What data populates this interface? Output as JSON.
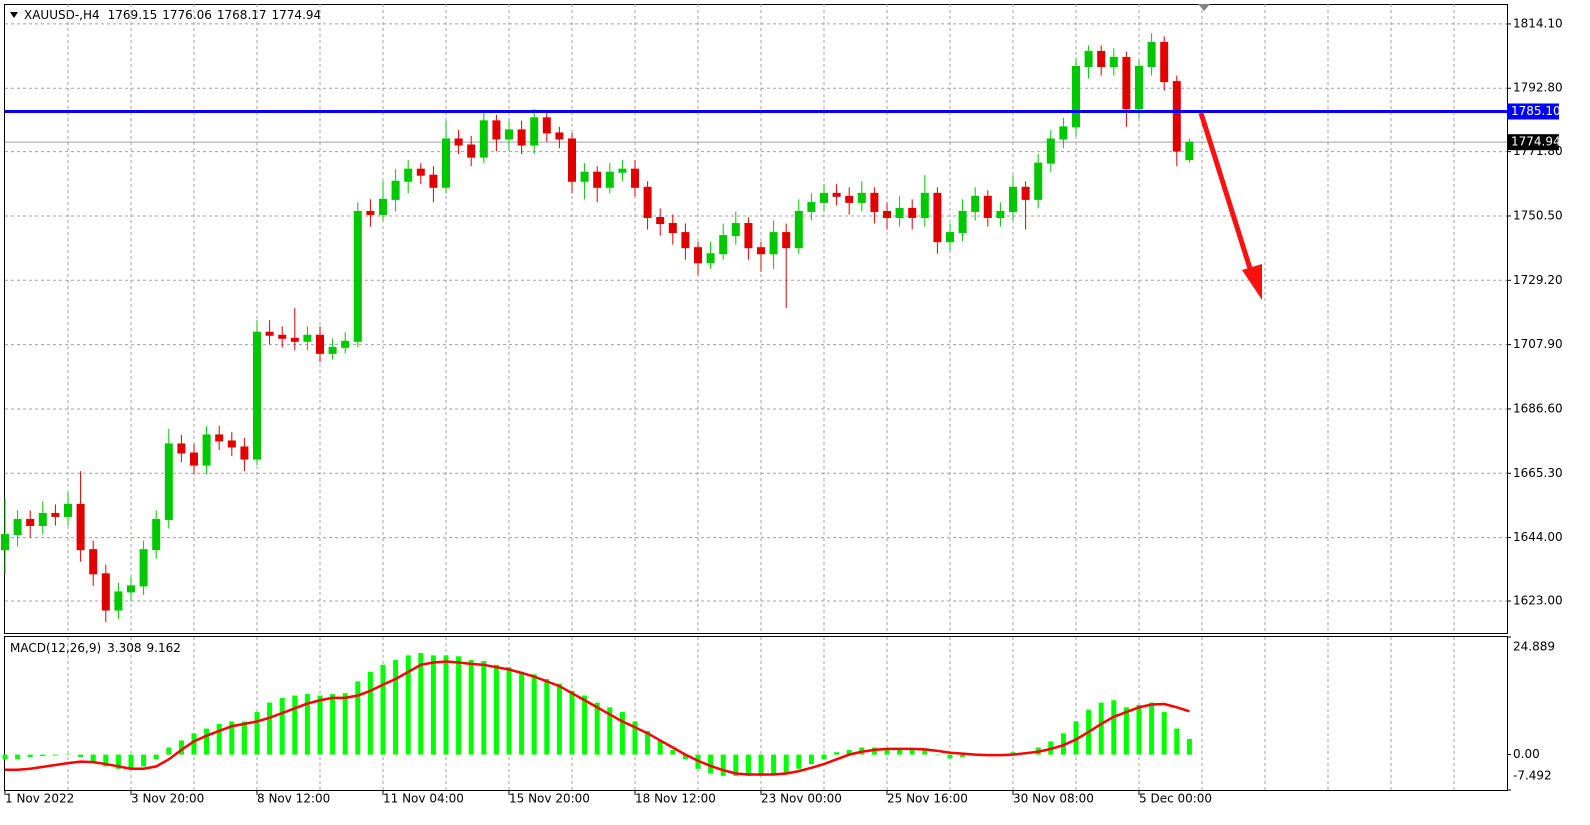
{
  "chart_data": [
    {
      "type": "candlestick",
      "symbol": "XAUUSD-,H4",
      "categories": [
        "1 Nov 2022",
        null,
        null,
        null,
        null,
        null,
        null,
        null,
        null,
        null,
        "3 Nov 20:00",
        null,
        null,
        null,
        null,
        null,
        null,
        null,
        null,
        null,
        "8 Nov 12:00",
        null,
        null,
        null,
        null,
        null,
        null,
        null,
        null,
        null,
        "11 Nov 04:00",
        null,
        null,
        null,
        null,
        null,
        null,
        null,
        null,
        null,
        "15 Nov 20:00",
        null,
        null,
        null,
        null,
        null,
        null,
        null,
        null,
        null,
        "18 Nov 12:00",
        null,
        null,
        null,
        null,
        null,
        null,
        null,
        null,
        null,
        "23 Nov 00:00",
        null,
        null,
        null,
        null,
        null,
        null,
        null,
        null,
        null,
        "25 Nov 16:00",
        null,
        null,
        null,
        null,
        null,
        null,
        null,
        null,
        null,
        "30 Nov 08:00",
        null,
        null,
        null,
        null,
        null,
        null,
        null,
        null,
        null,
        "5 Dec 00:00",
        null,
        null,
        null,
        null
      ],
      "candles": [
        [
          1640,
          1657,
          1632,
          1645
        ],
        [
          1645,
          1653,
          1641,
          1650
        ],
        [
          1650,
          1653,
          1644,
          1648
        ],
        [
          1648,
          1656,
          1645,
          1652
        ],
        [
          1652,
          1655,
          1648,
          1651
        ],
        [
          1651,
          1659,
          1648,
          1655
        ],
        [
          1655,
          1666,
          1636,
          1640
        ],
        [
          1640,
          1643,
          1628,
          1632
        ],
        [
          1632,
          1635,
          1616,
          1620
        ],
        [
          1620,
          1629,
          1617,
          1626
        ],
        [
          1626,
          1631,
          1623,
          1628
        ],
        [
          1628,
          1643,
          1625,
          1640
        ],
        [
          1640,
          1653,
          1637,
          1650
        ],
        [
          1650,
          1680,
          1647,
          1675
        ],
        [
          1675,
          1678,
          1669,
          1672
        ],
        [
          1672,
          1675,
          1665,
          1668
        ],
        [
          1668,
          1681,
          1665,
          1678
        ],
        [
          1678,
          1681,
          1673,
          1676
        ],
        [
          1676,
          1679,
          1671,
          1674
        ],
        [
          1674,
          1677,
          1666,
          1670
        ],
        [
          1670,
          1716,
          1668,
          1712
        ],
        [
          1712,
          1716,
          1708,
          1711
        ],
        [
          1711,
          1714,
          1707,
          1710
        ],
        [
          1710,
          1720,
          1706,
          1709
        ],
        [
          1709,
          1714,
          1706,
          1711
        ],
        [
          1711,
          1714,
          1702,
          1705
        ],
        [
          1705,
          1710,
          1703,
          1707
        ],
        [
          1707,
          1712,
          1705,
          1709
        ],
        [
          1709,
          1755,
          1707,
          1752
        ],
        [
          1752,
          1756,
          1747,
          1751
        ],
        [
          1751,
          1762,
          1749,
          1756
        ],
        [
          1756,
          1766,
          1752,
          1762
        ],
        [
          1762,
          1769,
          1758,
          1766
        ],
        [
          1766,
          1768,
          1761,
          1764
        ],
        [
          1764,
          1767,
          1755,
          1760
        ],
        [
          1760,
          1782,
          1758,
          1776
        ],
        [
          1776,
          1779,
          1771,
          1774
        ],
        [
          1774,
          1777,
          1767,
          1770
        ],
        [
          1770,
          1785,
          1768,
          1782
        ],
        [
          1782,
          1784,
          1772,
          1776
        ],
        [
          1776,
          1782,
          1772,
          1779
        ],
        [
          1779,
          1782,
          1771,
          1774
        ],
        [
          1774,
          1786,
          1771,
          1783
        ],
        [
          1783,
          1785,
          1775,
          1778
        ],
        [
          1778,
          1780,
          1773,
          1776
        ],
        [
          1776,
          1778,
          1758,
          1762
        ],
        [
          1762,
          1768,
          1756,
          1765
        ],
        [
          1765,
          1767,
          1755,
          1760
        ],
        [
          1760,
          1768,
          1758,
          1765
        ],
        [
          1765,
          1769,
          1762,
          1766
        ],
        [
          1766,
          1769,
          1757,
          1760
        ],
        [
          1760,
          1762,
          1746,
          1750
        ],
        [
          1750,
          1753,
          1744,
          1748
        ],
        [
          1748,
          1751,
          1741,
          1745
        ],
        [
          1745,
          1748,
          1736,
          1740
        ],
        [
          1740,
          1742,
          1731,
          1735
        ],
        [
          1735,
          1742,
          1733,
          1738
        ],
        [
          1738,
          1748,
          1736,
          1744
        ],
        [
          1744,
          1752,
          1741,
          1748
        ],
        [
          1748,
          1750,
          1736,
          1740
        ],
        [
          1740,
          1742,
          1732,
          1738
        ],
        [
          1738,
          1749,
          1733,
          1745
        ],
        [
          1745,
          1748,
          1720,
          1740
        ],
        [
          1740,
          1756,
          1738,
          1752
        ],
        [
          1752,
          1758,
          1749,
          1755
        ],
        [
          1755,
          1761,
          1752,
          1758
        ],
        [
          1758,
          1761,
          1754,
          1757
        ],
        [
          1757,
          1760,
          1751,
          1755
        ],
        [
          1755,
          1762,
          1752,
          1758
        ],
        [
          1758,
          1760,
          1748,
          1752
        ],
        [
          1752,
          1755,
          1746,
          1750
        ],
        [
          1750,
          1757,
          1747,
          1753
        ],
        [
          1753,
          1756,
          1746,
          1750
        ],
        [
          1750,
          1764,
          1747,
          1758
        ],
        [
          1758,
          1760,
          1738,
          1742
        ],
        [
          1742,
          1748,
          1739,
          1745
        ],
        [
          1745,
          1756,
          1742,
          1752
        ],
        [
          1752,
          1760,
          1749,
          1757
        ],
        [
          1757,
          1759,
          1747,
          1750
        ],
        [
          1750,
          1755,
          1747,
          1752
        ],
        [
          1752,
          1764,
          1749,
          1760
        ],
        [
          1760,
          1762,
          1746,
          1756
        ],
        [
          1756,
          1771,
          1753,
          1768
        ],
        [
          1768,
          1779,
          1765,
          1776
        ],
        [
          1776,
          1783,
          1773,
          1780
        ],
        [
          1780,
          1803,
          1777,
          1800
        ],
        [
          1800,
          1807,
          1796,
          1805
        ],
        [
          1805,
          1807,
          1797,
          1800
        ],
        [
          1800,
          1806,
          1797,
          1803
        ],
        [
          1803,
          1805,
          1780,
          1786
        ],
        [
          1786,
          1802,
          1783,
          1800
        ],
        [
          1800,
          1811,
          1797,
          1808
        ],
        [
          1808,
          1810,
          1792,
          1795
        ],
        [
          1795,
          1797,
          1767,
          1772
        ],
        [
          1769.15,
          1776.06,
          1768.17,
          1774.94
        ]
      ],
      "up_color": "#00c800",
      "down_color": "#e00000",
      "ylim": [
        1612.4,
        1820.7
      ],
      "yticks": [
        {
          "value": 1814.1,
          "label": "1814.10"
        },
        {
          "value": 1792.8,
          "label": "1792.80"
        },
        {
          "value": 1771.8,
          "label": "1771.80"
        },
        {
          "value": 1750.5,
          "label": "1750.50"
        },
        {
          "value": 1729.2,
          "label": "1729.20"
        },
        {
          "value": 1707.9,
          "label": "1707.90"
        },
        {
          "value": 1686.6,
          "label": "1686.60"
        },
        {
          "value": 1665.3,
          "label": "1665.30"
        },
        {
          "value": 1644,
          "label": "1644.00"
        },
        {
          "value": 1623,
          "label": "1623.00"
        }
      ],
      "grid": true,
      "level": {
        "value": 1785.1,
        "label": "1785.10",
        "color": "#0000ff"
      },
      "current_price": 1774.94
    },
    {
      "type": "macd",
      "title": "MACD(12,26,9)",
      "histogram": [
        -1,
        -1,
        -0.5,
        -0.3,
        -0.2,
        0,
        -0.5,
        -1.5,
        -2.5,
        -3,
        -3.2,
        -2.5,
        -1,
        1.5,
        3,
        4.5,
        5.5,
        6.5,
        7,
        7,
        9,
        11,
        12,
        12.5,
        12.8,
        12.5,
        12.8,
        13,
        15.5,
        17.5,
        19,
        20,
        21,
        21.5,
        21,
        21,
        20.8,
        20,
        19.8,
        19,
        18.5,
        17.5,
        17,
        16,
        15,
        13.5,
        12.5,
        11,
        10,
        9,
        7,
        5,
        3,
        1,
        -1,
        -3,
        -4,
        -4.5,
        -4.5,
        -4.5,
        -4.5,
        -4,
        -4,
        -3,
        -2,
        -1,
        0.5,
        1,
        1.5,
        1.5,
        1.2,
        1.2,
        1,
        1.2,
        0,
        -0.8,
        -0.5,
        0,
        -0.2,
        0,
        0.5,
        0.5,
        1.5,
        2.8,
        4.5,
        7,
        9.5,
        11,
        11.5,
        10,
        10.5,
        11,
        9,
        5.5,
        3.308
      ],
      "histogram_color": "#00ff00",
      "signal": [
        -3.2,
        -3.2,
        -3,
        -2.6,
        -2.2,
        -1.8,
        -1.5,
        -1.6,
        -2,
        -2.5,
        -3,
        -3,
        -2.5,
        -1,
        1,
        2.8,
        4,
        5,
        6,
        6.5,
        7,
        7.8,
        8.8,
        9.8,
        10.8,
        11.5,
        12,
        12,
        12.5,
        13.5,
        14.8,
        16,
        17.5,
        19,
        19.5,
        19.7,
        19.5,
        19.2,
        19,
        18.5,
        18,
        17.3,
        16.5,
        15.5,
        14.5,
        13,
        11.5,
        10,
        8.5,
        7,
        5.8,
        4.5,
        3,
        1.5,
        0,
        -1.3,
        -2.4,
        -3.3,
        -4,
        -4.2,
        -4.2,
        -4.2,
        -4,
        -3.5,
        -2.8,
        -2,
        -1,
        0,
        0.6,
        1,
        1.2,
        1.2,
        1.2,
        1.1,
        0.8,
        0.4,
        0.2,
        0,
        -0.1,
        -0.1,
        0,
        0.3,
        0.6,
        1.2,
        2,
        3.2,
        4.8,
        6.5,
        8,
        9,
        10,
        10.6,
        10.7,
        10,
        9.162
      ],
      "signal_color": "#ff0000",
      "ylim": [
        -7.492,
        24.889
      ],
      "yticks": [
        24.889,
        {
          "value": 0,
          "label": "0.00"
        },
        -7.492
      ]
    }
  ]
}
